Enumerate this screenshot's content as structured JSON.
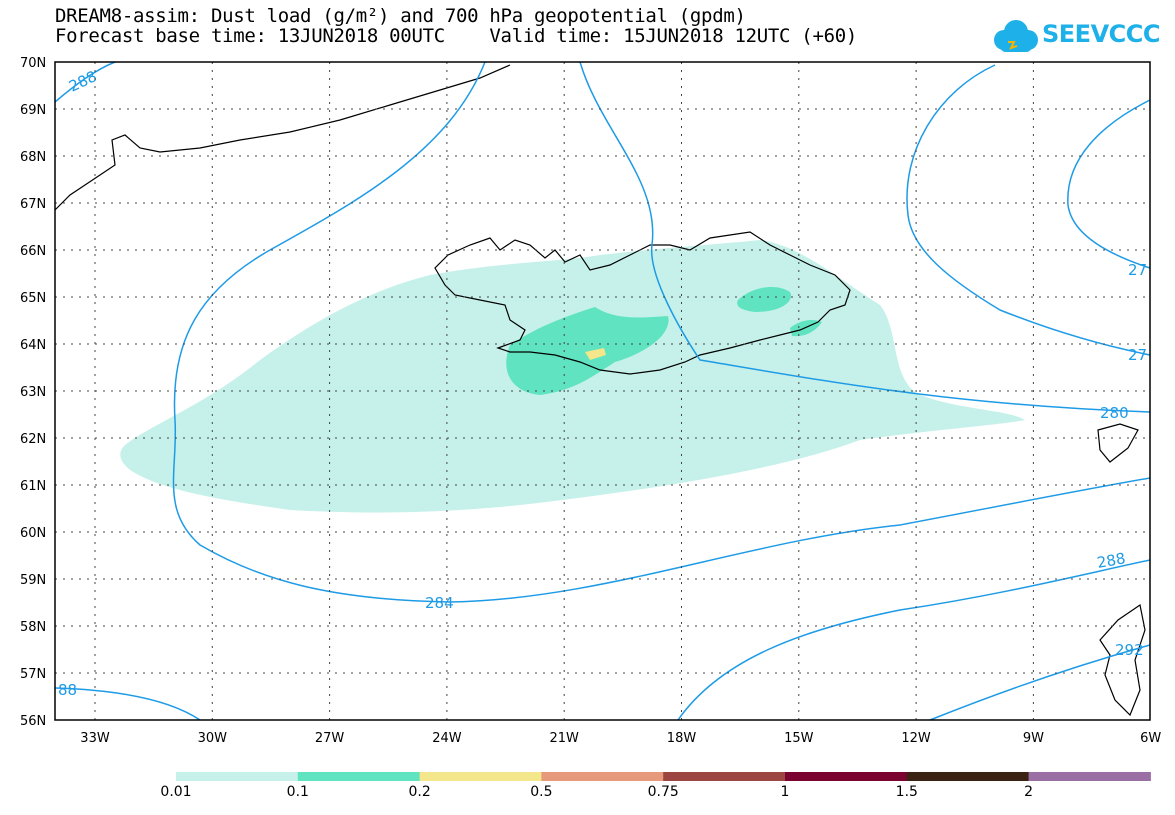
{
  "title": {
    "line1": "DREAM8-assim: Dust load (g/m²) and 700 hPa geopotential (gpdm)",
    "line2": "Forecast base time: 13JUN2018 00UTC    Valid time: 15JUN2018 12UTC (+60)"
  },
  "logo": {
    "text": "SEEVCCC"
  },
  "lat_labels": [
    "70N",
    "69N",
    "68N",
    "67N",
    "66N",
    "65N",
    "64N",
    "63N",
    "62N",
    "61N",
    "60N",
    "59N",
    "58N",
    "57N",
    "56N"
  ],
  "lon_labels": [
    "33W",
    "30W",
    "27W",
    "24W",
    "21W",
    "18W",
    "15W",
    "12W",
    "9W",
    "6W"
  ],
  "contour_labels": [
    "288",
    "284",
    "280",
    "288",
    "27",
    "27",
    "292",
    "88"
  ],
  "colorbar": {
    "colors": [
      "#c5f1ea",
      "#5fe3c0",
      "#f4e68a",
      "#e79a7b",
      "#9d4541",
      "#7b0330",
      "#3a2312",
      "#9a6fa3"
    ],
    "labels": [
      "0.01",
      "0.1",
      "0.2",
      "0.5",
      "0.75",
      "1",
      "1.5",
      "2"
    ]
  },
  "colors": {
    "contour": "#1e9be6",
    "dust_light": "#c5f1ea",
    "dust_mid": "#5fe3c0",
    "dust_high": "#f4e68a"
  }
}
